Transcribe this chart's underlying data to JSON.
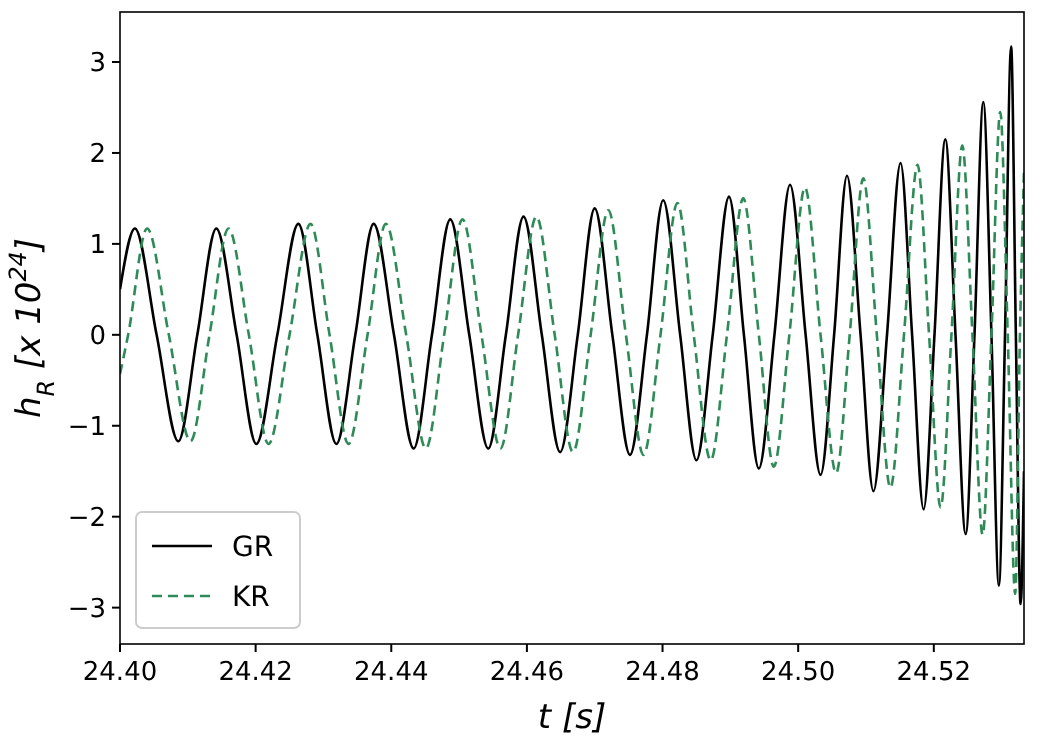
{
  "chart_data": {
    "type": "line",
    "xlabel": "t [s]",
    "ylabel": "h$_{R}$ [x 10$^{24}$]",
    "xlim": [
      24.4,
      24.5333
    ],
    "xticks": [
      {
        "value": 24.4,
        "label": "24.40"
      },
      24.42,
      24.44,
      24.46,
      24.48,
      {
        "value": 24.5,
        "label": "24.50"
      },
      24.52
    ],
    "ylim": [
      -3.4,
      3.55
    ],
    "yticks": [
      {
        "value": -3,
        "label": "−3"
      },
      {
        "value": -2,
        "label": "−2"
      },
      {
        "value": -1,
        "label": "−1"
      },
      0,
      1,
      2,
      3
    ],
    "grid": false,
    "legend": "bottom left",
    "series": [
      {
        "name": "GR",
        "color": "#000000",
        "line_style": "solid",
        "x": [
          24.4,
          24.4022,
          24.4054,
          24.4086,
          24.4114,
          24.4142,
          24.4172,
          24.4201,
          24.4232,
          24.4263,
          24.4291,
          24.4319,
          24.4347,
          24.4374,
          24.4404,
          24.4433,
          24.446,
          24.4487,
          24.4515,
          24.4543,
          24.4569,
          24.4595,
          24.4622,
          24.4649,
          24.4675,
          24.47,
          24.4726,
          24.4752,
          24.4777,
          24.4801,
          24.4826,
          24.485,
          24.4874,
          24.4898,
          24.492,
          24.4942,
          24.4965,
          24.4988,
          24.5011,
          24.5033,
          24.5053,
          24.5072,
          24.5092,
          24.5111,
          24.5131,
          24.5151,
          24.5168,
          24.5185,
          24.5201,
          24.5217,
          24.5232,
          24.5247,
          24.526,
          24.5273,
          24.5285,
          24.5296,
          24.5305,
          24.5314,
          24.5321,
          24.5328,
          24.5333
        ],
        "values": [
          0.5,
          1.17,
          0,
          -1.17,
          0,
          1.17,
          0,
          -1.2,
          0,
          1.22,
          0,
          -1.2,
          0,
          1.22,
          0,
          -1.25,
          0,
          1.27,
          0,
          -1.25,
          0,
          1.3,
          0,
          -1.29,
          0,
          1.39,
          0,
          -1.32,
          0,
          1.48,
          0,
          -1.38,
          0,
          1.52,
          0,
          -1.47,
          0,
          1.65,
          0,
          -1.54,
          0,
          1.75,
          0,
          -1.72,
          0,
          1.89,
          0,
          -1.92,
          0,
          2.15,
          0,
          -2.19,
          0,
          2.56,
          0,
          -2.76,
          0,
          3.17,
          0,
          -2.96,
          -1.5
        ]
      },
      {
        "name": "KR",
        "color": "#2e8b57",
        "line_style": "dashed",
        "x": [
          24.4,
          24.4012,
          24.404,
          24.4072,
          24.4104,
          24.4132,
          24.416,
          24.419,
          24.4219,
          24.425,
          24.4281,
          24.4309,
          24.4337,
          24.4365,
          24.4392,
          24.4422,
          24.4451,
          24.4478,
          24.4505,
          24.4533,
          24.4561,
          24.4587,
          24.4614,
          24.4641,
          24.4668,
          24.4694,
          24.472,
          24.4746,
          24.4772,
          24.4797,
          24.4822,
          24.4846,
          24.4871,
          24.4895,
          24.4919,
          24.4942,
          24.4964,
          24.4987,
          24.501,
          24.5033,
          24.5056,
          24.5076,
          24.5096,
          24.5116,
          24.5136,
          24.5156,
          24.5176,
          24.5193,
          24.521,
          24.5226,
          24.5242,
          24.5257,
          24.5272,
          24.5285,
          24.5298,
          24.5309,
          24.532,
          24.5327,
          24.5333
        ],
        "values": [
          -0.43,
          0,
          1.17,
          0,
          -1.17,
          0,
          1.17,
          0,
          -1.2,
          0,
          1.22,
          0,
          -1.2,
          0,
          1.22,
          0,
          -1.25,
          0,
          1.27,
          0,
          -1.25,
          0,
          1.3,
          0,
          -1.29,
          0,
          1.37,
          0,
          -1.32,
          0,
          1.45,
          0,
          -1.38,
          0,
          1.5,
          0,
          -1.45,
          0,
          1.62,
          0,
          -1.52,
          0,
          1.72,
          0,
          -1.68,
          0,
          1.87,
          0,
          -1.9,
          0,
          2.08,
          0,
          -2.2,
          0,
          2.45,
          0,
          -2.85,
          0,
          1.8
        ]
      }
    ]
  }
}
